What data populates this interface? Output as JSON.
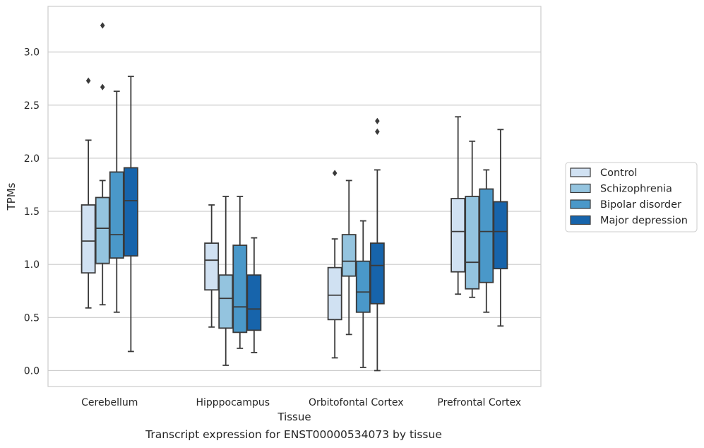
{
  "caption": "Transcript expression for ENST00000534073 by tissue",
  "chart_data": {
    "type": "box",
    "xlabel": "Tissue",
    "ylabel": "TPMs",
    "ylim": [
      -0.15,
      3.43
    ],
    "yticks": [
      0.0,
      0.5,
      1.0,
      1.5,
      2.0,
      2.5,
      3.0
    ],
    "ytick_labels": [
      "0.0",
      "0.5",
      "1.0",
      "1.5",
      "2.0",
      "2.5",
      "3.0"
    ],
    "grid": "horizontal",
    "legend_position": "right",
    "categories": [
      "Cerebellum",
      "Hipppocampus",
      "Orbitofontal Cortex",
      "Prefrontal Cortex"
    ],
    "series": [
      {
        "name": "Control",
        "color": "#d0e1f2",
        "boxes": [
          {
            "whislo": 0.59,
            "q1": 0.92,
            "med": 1.22,
            "q3": 1.56,
            "whishi": 2.17,
            "fliers": [
              2.73
            ]
          },
          {
            "whislo": 0.41,
            "q1": 0.76,
            "med": 1.04,
            "q3": 1.2,
            "whishi": 1.56,
            "fliers": []
          },
          {
            "whislo": 0.12,
            "q1": 0.48,
            "med": 0.71,
            "q3": 0.97,
            "whishi": 1.24,
            "fliers": [
              1.86
            ]
          },
          {
            "whislo": 0.72,
            "q1": 0.93,
            "med": 1.31,
            "q3": 1.62,
            "whishi": 2.39,
            "fliers": []
          }
        ]
      },
      {
        "name": "Schizophrenia",
        "color": "#94c4df",
        "boxes": [
          {
            "whislo": 0.62,
            "q1": 1.01,
            "med": 1.34,
            "q3": 1.63,
            "whishi": 1.79,
            "fliers": [
              2.67,
              3.25
            ]
          },
          {
            "whislo": 0.05,
            "q1": 0.4,
            "med": 0.68,
            "q3": 0.9,
            "whishi": 1.64,
            "fliers": []
          },
          {
            "whislo": 0.34,
            "q1": 0.89,
            "med": 1.03,
            "q3": 1.28,
            "whishi": 1.79,
            "fliers": []
          },
          {
            "whislo": 0.69,
            "q1": 0.77,
            "med": 1.02,
            "q3": 1.64,
            "whishi": 2.16,
            "fliers": []
          }
        ]
      },
      {
        "name": "Bipolar disorder",
        "color": "#4a98c9",
        "boxes": [
          {
            "whislo": 0.55,
            "q1": 1.06,
            "med": 1.28,
            "q3": 1.87,
            "whishi": 2.63,
            "fliers": []
          },
          {
            "whislo": 0.21,
            "q1": 0.36,
            "med": 0.6,
            "q3": 1.18,
            "whishi": 1.64,
            "fliers": []
          },
          {
            "whislo": 0.03,
            "q1": 0.55,
            "med": 0.74,
            "q3": 1.03,
            "whishi": 1.41,
            "fliers": []
          },
          {
            "whislo": 0.55,
            "q1": 0.83,
            "med": 1.31,
            "q3": 1.71,
            "whishi": 1.89,
            "fliers": []
          }
        ]
      },
      {
        "name": "Major depression",
        "color": "#1764ab",
        "boxes": [
          {
            "whislo": 0.18,
            "q1": 1.08,
            "med": 1.6,
            "q3": 1.91,
            "whishi": 2.77,
            "fliers": []
          },
          {
            "whislo": 0.17,
            "q1": 0.38,
            "med": 0.58,
            "q3": 0.9,
            "whishi": 1.25,
            "fliers": []
          },
          {
            "whislo": 0.0,
            "q1": 0.63,
            "med": 0.99,
            "q3": 1.2,
            "whishi": 1.89,
            "fliers": [
              2.25,
              2.35
            ]
          },
          {
            "whislo": 0.42,
            "q1": 0.96,
            "med": 1.31,
            "q3": 1.59,
            "whishi": 2.27,
            "fliers": []
          }
        ]
      }
    ]
  }
}
